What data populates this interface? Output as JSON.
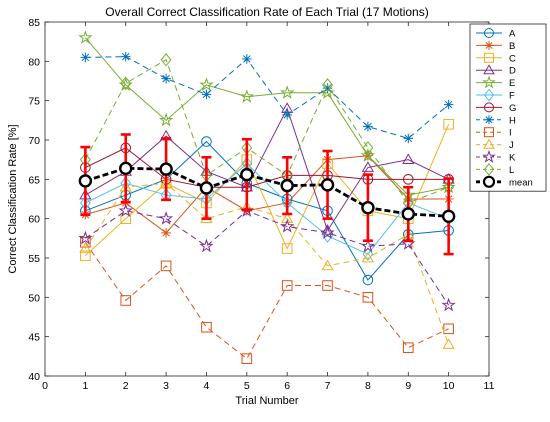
{
  "chart_data": {
    "type": "line",
    "title": "Overall Correct Classification Rate of Each Trial (17 Motions)",
    "xlabel": "Trial Number",
    "ylabel": "Correct Classification Rate [%]",
    "xlim": [
      0,
      11
    ],
    "ylim": [
      40,
      85
    ],
    "xticks": [
      "0",
      "1",
      "2",
      "3",
      "4",
      "5",
      "6",
      "7",
      "8",
      "9",
      "10",
      "11"
    ],
    "yticks": [
      "40",
      "45",
      "50",
      "55",
      "60",
      "65",
      "70",
      "75",
      "80",
      "85"
    ],
    "x": [
      1,
      2,
      3,
      4,
      5,
      6,
      7,
      8,
      9,
      10
    ],
    "legend_position": "right",
    "series": [
      {
        "name": "A",
        "color": "#0072bd",
        "marker": "circle",
        "dash": "solid",
        "values": [
          61.0,
          63.0,
          65.0,
          69.8,
          64.5,
          62.5,
          61.0,
          52.2,
          58.0,
          58.5
        ]
      },
      {
        "name": "B",
        "color": "#d95319",
        "marker": "asterisk",
        "dash": "solid",
        "values": [
          60.5,
          62.0,
          58.2,
          64.0,
          61.0,
          62.0,
          67.5,
          68.0,
          62.5,
          62.5
        ]
      },
      {
        "name": "C",
        "color": "#edb120",
        "marker": "square",
        "dash": "solid",
        "values": [
          55.3,
          60.0,
          64.5,
          62.0,
          67.5,
          56.2,
          67.0,
          61.0,
          60.0,
          72.0
        ]
      },
      {
        "name": "D",
        "color": "#7e2f8e",
        "marker": "triangle",
        "dash": "solid",
        "values": [
          63.0,
          66.0,
          70.5,
          66.0,
          64.0,
          74.0,
          58.5,
          66.5,
          67.5,
          65.0
        ]
      },
      {
        "name": "E",
        "color": "#77ac30",
        "marker": "star",
        "dash": "solid",
        "values": [
          83.0,
          77.0,
          72.5,
          77.0,
          75.5,
          76.0,
          76.0,
          68.0,
          63.0,
          64.0
        ]
      },
      {
        "name": "F",
        "color": "#4dbeee",
        "marker": "diamond",
        "dash": "solid",
        "values": [
          62.0,
          64.5,
          63.0,
          62.5,
          67.0,
          62.0,
          57.8,
          55.5,
          62.0,
          60.0
        ]
      },
      {
        "name": "G",
        "color": "#a2142f",
        "marker": "circle",
        "dash": "solid",
        "values": [
          66.5,
          69.0,
          65.0,
          64.0,
          64.0,
          65.5,
          65.5,
          65.0,
          65.0,
          65.0
        ]
      },
      {
        "name": "H",
        "color": "#0072bd",
        "marker": "asterisk",
        "dash": "dashed",
        "values": [
          80.5,
          80.6,
          77.8,
          75.8,
          80.3,
          73.2,
          76.6,
          71.7,
          70.2,
          74.5
        ]
      },
      {
        "name": "I",
        "color": "#d95319",
        "marker": "square",
        "dash": "dashed",
        "values": [
          57.0,
          49.6,
          54.0,
          46.2,
          42.2,
          51.5,
          51.5,
          50.0,
          43.6,
          46.0
        ]
      },
      {
        "name": "J",
        "color": "#edb120",
        "marker": "triangle",
        "dash": "dashed",
        "values": [
          56.2,
          64.0,
          64.5,
          60.0,
          61.5,
          60.0,
          54.0,
          55.0,
          58.0,
          44.0
        ]
      },
      {
        "name": "K",
        "color": "#7e2f8e",
        "marker": "star",
        "dash": "dashed",
        "values": [
          57.5,
          61.0,
          60.0,
          56.5,
          61.0,
          59.0,
          58.2,
          56.5,
          56.8,
          49.0
        ]
      },
      {
        "name": "L",
        "color": "#77ac30",
        "marker": "diamond",
        "dash": "dashed",
        "values": [
          67.5,
          77.2,
          80.2,
          65.5,
          69.0,
          65.5,
          77.0,
          69.0,
          62.0,
          64.0
        ]
      },
      {
        "name": "mean",
        "color": "#000000",
        "marker": "circle",
        "dash": "dashed",
        "bold": true,
        "values": [
          64.8,
          66.4,
          66.3,
          63.9,
          65.6,
          64.2,
          64.3,
          61.4,
          60.6,
          60.3
        ],
        "error": [
          4.3,
          4.3,
          3.9,
          3.9,
          4.5,
          3.6,
          4.3,
          4.2,
          3.4,
          4.8
        ]
      }
    ]
  }
}
